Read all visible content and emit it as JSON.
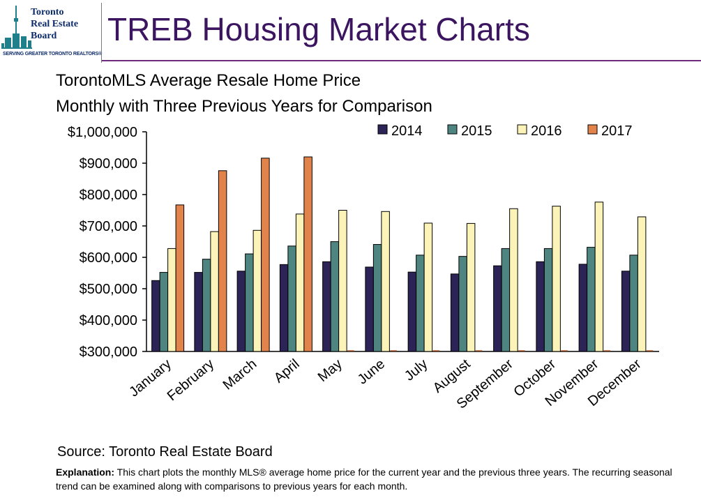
{
  "logo": {
    "line1": "Toronto",
    "line2": "Real Estate",
    "line3": "Board",
    "tagline": "SERVING GREATER TORONTO REALTORS®",
    "skyline_icon": "cn-tower-skyline-icon"
  },
  "header": {
    "title": "TREB Housing Market Charts"
  },
  "colors": {
    "title": "#3b1560",
    "rule": "#6d2a7a",
    "s2014": "#2c2457",
    "s2015": "#4e8580",
    "s2016": "#fbf3b7",
    "s2017": "#e2834c"
  },
  "chart_data": {
    "type": "bar",
    "title": "TorontoMLS Average Resale Home Price",
    "subtitle": "Monthly with Three Previous Years for Comparison",
    "xlabel": "",
    "ylabel": "",
    "ylim": [
      300000,
      1000000
    ],
    "yticks": [
      300000,
      400000,
      500000,
      600000,
      700000,
      800000,
      900000,
      1000000
    ],
    "ytick_labels": [
      "$300,000",
      "$400,000",
      "$500,000",
      "$600,000",
      "$700,000",
      "$800,000",
      "$900,000",
      "$1,000,000"
    ],
    "grid": false,
    "legend_position": "top-right",
    "categories": [
      "January",
      "February",
      "March",
      "April",
      "May",
      "June",
      "July",
      "August",
      "September",
      "October",
      "November",
      "December"
    ],
    "series": [
      {
        "name": "2014",
        "values": [
          526000,
          552000,
          556000,
          577000,
          586000,
          569000,
          553000,
          547000,
          573000,
          586000,
          578000,
          556000
        ]
      },
      {
        "name": "2015",
        "values": [
          552000,
          594000,
          611000,
          636000,
          650000,
          641000,
          607000,
          603000,
          628000,
          628000,
          632000,
          607000
        ]
      },
      {
        "name": "2016",
        "values": [
          628000,
          682000,
          686000,
          738000,
          750000,
          746000,
          709000,
          708000,
          755000,
          763000,
          776000,
          729000
        ]
      },
      {
        "name": "2017",
        "values": [
          767000,
          876000,
          916000,
          920000,
          null,
          null,
          null,
          null,
          null,
          null,
          null,
          null
        ]
      }
    ]
  },
  "footer": {
    "source": "Source: Toronto Real Estate Board",
    "explanation_label": "Explanation:",
    "explanation_text": " This chart plots the monthly MLS® average home price for the current year and the previous three years. The recurring seasonal trend can be examined along with comparisons to previous years for each month."
  }
}
